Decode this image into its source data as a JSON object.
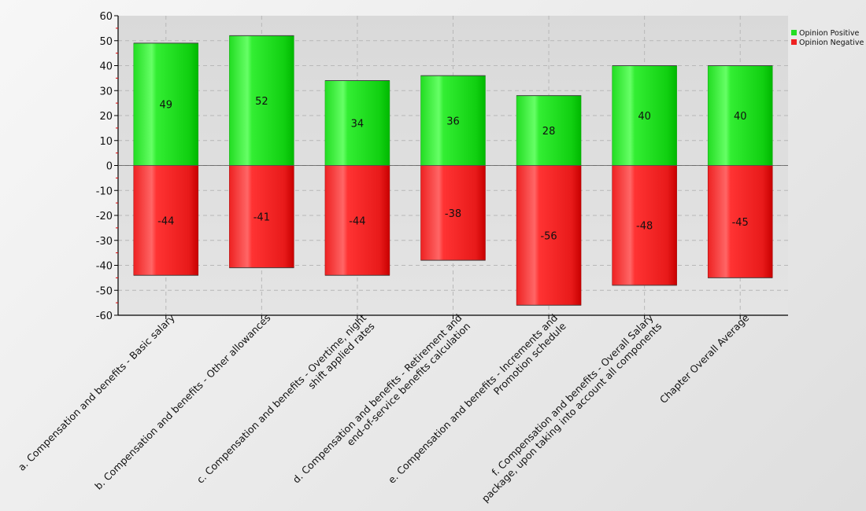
{
  "chart_data": {
    "type": "bar",
    "stacked": true,
    "categories": [
      "a. Compensation and benefits - Basic salary",
      "b. Compensation and benefits - Other allowances",
      "c. Compensation and benefits - Overtime, night shift applied rates",
      "d. Compensation and benefits - Retirement and end-of-service benefits calculation",
      "e. Compensation and benefits - Increments and Promotion schedule",
      "f. Compensation and benefits - Overall Salary package, upon taking into account all components",
      "Chapter Overall Average"
    ],
    "category_label_lines": [
      [
        "a. Compensation and benefits - Basic salary"
      ],
      [
        "b. Compensation and benefits - Other allowances"
      ],
      [
        "c. Compensation and benefits - Overtime, night",
        "shift applied rates"
      ],
      [
        "d. Compensation and benefits - Retirement and",
        "end-of-service benefits calculation"
      ],
      [
        "e. Compensation and benefits - Increments and",
        "Promotion schedule"
      ],
      [
        "f. Compensation and benefits - Overall Salary",
        "package, upon taking into account all components"
      ],
      [
        "Chapter Overall Average"
      ]
    ],
    "series": [
      {
        "name": "Opinion Positive",
        "values": [
          49,
          52,
          34,
          36,
          28,
          40,
          40
        ],
        "color": "#22dd22"
      },
      {
        "name": "Opinion Negative",
        "values": [
          -44,
          -41,
          -44,
          -38,
          -56,
          -48,
          -45
        ],
        "color": "#ee2222"
      }
    ],
    "ylim": [
      -60,
      60
    ],
    "yticks": [
      60,
      50,
      40,
      30,
      20,
      10,
      0,
      -10,
      -20,
      -30,
      -40,
      -50,
      -60
    ],
    "grid": true,
    "legend_position": "top-right",
    "title": "",
    "xlabel": "",
    "ylabel": ""
  }
}
